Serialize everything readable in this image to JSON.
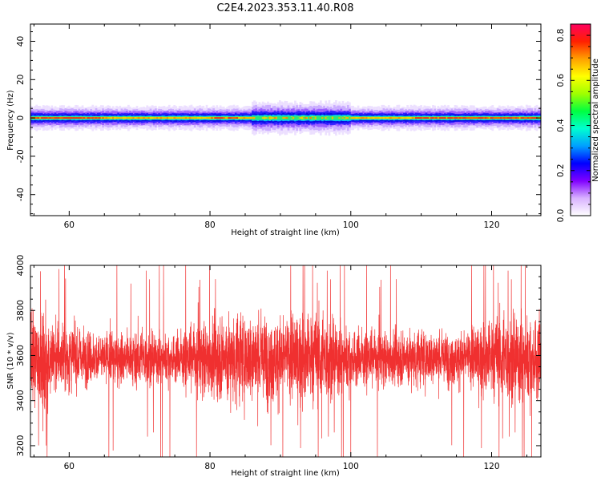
{
  "figure_title": "C2E4.2023.353.11.40.R08",
  "chart_data": [
    {
      "type": "heatmap",
      "xlabel": "Height of straight line (km)",
      "ylabel": "Frequency (Hz)",
      "xlim": [
        54.5,
        127.0
      ],
      "ylim": [
        -51,
        49
      ],
      "xticks": [
        60,
        80,
        100,
        120
      ],
      "yticks": [
        -40,
        -20,
        0,
        20,
        40
      ],
      "colorbar": {
        "label": "Normalized spectral amplitude",
        "range": [
          0,
          0.85
        ],
        "ticks": [
          "0.0",
          "0.2",
          "0.4",
          "0.6",
          "0.8"
        ],
        "colormap": [
          "#ffffff",
          "#d9b3ff",
          "#8000ff",
          "#0000ff",
          "#00a0ff",
          "#00ffd0",
          "#00ff40",
          "#a0ff00",
          "#ffff00",
          "#ffa000",
          "#ff2000",
          "#ff0060"
        ]
      },
      "band": {
        "center_frequency_hz": 0,
        "half_width_hz": 2.5,
        "peak_amplitude": 0.85,
        "core_strong_segments_km": [
          [
            54.5,
            65
          ],
          [
            80,
            84
          ],
          [
            109,
            127
          ]
        ],
        "green_segments_km": [
          [
            86,
            100
          ]
        ]
      }
    },
    {
      "type": "line",
      "xlabel": "Height of straight line (km)",
      "ylabel": "SNR (10 * v/v)",
      "xlim": [
        54.5,
        127.0
      ],
      "ylim": [
        3150,
        4000
      ],
      "xticks": [
        60,
        80,
        100,
        120
      ],
      "yticks": [
        3200,
        3400,
        3600,
        3800,
        4000
      ],
      "series": [
        {
          "color": "#f03030",
          "mean": 3590,
          "typical_range": [
            3380,
            3820
          ],
          "max": 4000,
          "min": 3150
        }
      ]
    }
  ]
}
